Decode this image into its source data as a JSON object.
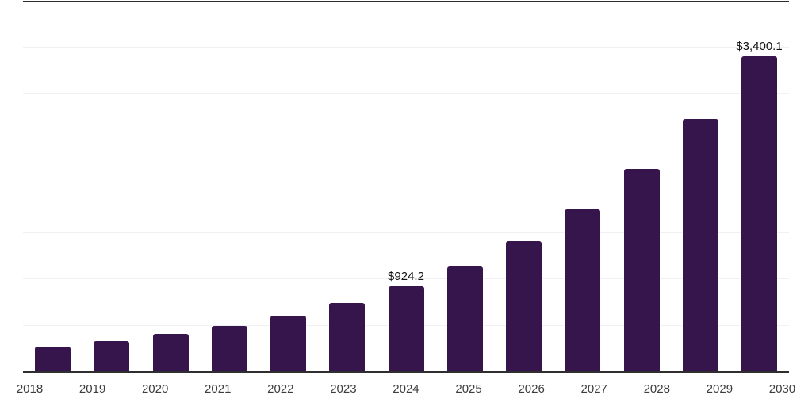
{
  "chart_data": {
    "type": "bar",
    "title": "",
    "xlabel": "",
    "ylabel": "",
    "categories": [
      "2018",
      "2019",
      "2020",
      "2021",
      "2022",
      "2023",
      "2024",
      "2025",
      "2026",
      "2027",
      "2028",
      "2029",
      "2030"
    ],
    "values": [
      272,
      335,
      409,
      494,
      604,
      743,
      924.2,
      1140,
      1413,
      1751,
      2185,
      2723,
      3400.1
    ],
    "point_labels": {
      "2024": "$924.2",
      "2030": "$3,400.1"
    },
    "ylim": [
      0,
      4000
    ],
    "gridline_step": 500,
    "grid": "horizontal-only",
    "legend": "none",
    "y_tick_labels_visible": false,
    "colors": {
      "bar": "#36154d",
      "top_border": "#2f2f2f",
      "axis_line": "#2f2f2f",
      "gridline": "#f1f1f4",
      "point_label_text": "#111111",
      "tick_text": "#3d3d3d",
      "background": "#ffffff"
    }
  }
}
